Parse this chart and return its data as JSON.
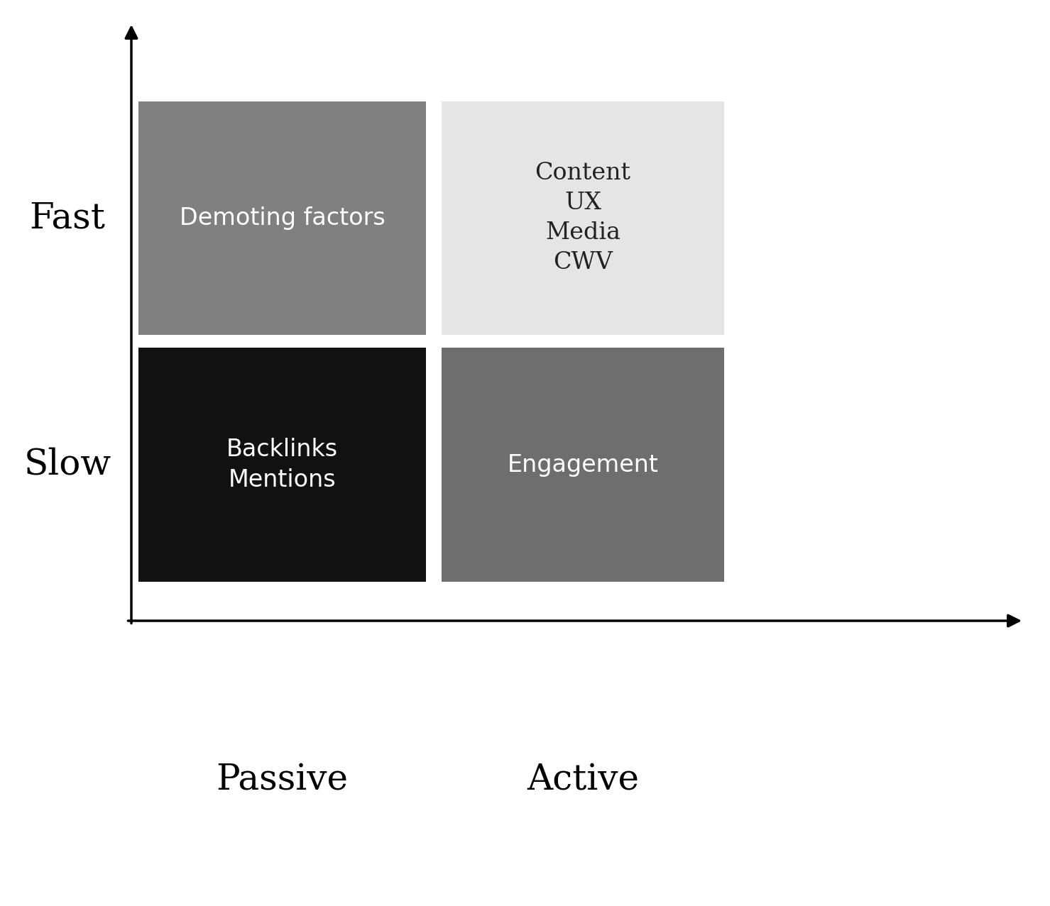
{
  "background_color": "#ffffff",
  "quadrants": [
    {
      "label": "Demoting factors",
      "color": "#808080",
      "text_color": "#ffffff",
      "fontsize": 24,
      "bold": false,
      "font_family": "DejaVu Sans"
    },
    {
      "label": "Content\nUX\nMedia\nCWV",
      "color": "#e5e5e5",
      "text_color": "#222222",
      "fontsize": 24,
      "bold": false,
      "font_family": "DejaVu Serif"
    },
    {
      "label": "Backlinks\nMentions",
      "color": "#111111",
      "text_color": "#ffffff",
      "fontsize": 24,
      "bold": false,
      "font_family": "DejaVu Sans"
    },
    {
      "label": "Engagement",
      "color": "#6e6e6e",
      "text_color": "#ffffff",
      "fontsize": 24,
      "bold": false,
      "font_family": "DejaVu Sans"
    }
  ],
  "axis_label_fontsize": 36,
  "axis_label_font_family": "DejaVu Serif"
}
